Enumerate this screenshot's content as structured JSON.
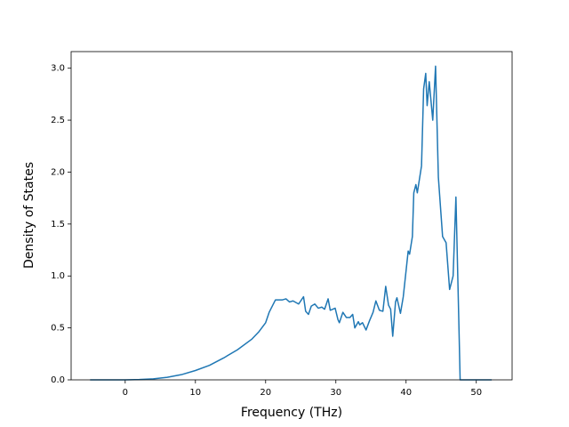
{
  "chart_data": {
    "type": "line",
    "xlabel": "Frequency (THz)",
    "ylabel": "Density of States",
    "xlim": [
      -7.7,
      55.1
    ],
    "ylim": [
      0,
      3.16
    ],
    "xticks": [
      0,
      10,
      20,
      30,
      40,
      50
    ],
    "yticks": [
      {
        "value": 0,
        "label": "0.0"
      },
      0.5,
      {
        "value": 1,
        "label": "1.0"
      },
      1.5,
      {
        "value": 2,
        "label": "2.0"
      },
      2.5,
      {
        "value": 3,
        "label": "3.0"
      }
    ],
    "grid": false,
    "series": [
      {
        "color": "#1f77b4",
        "x": [
          -5,
          0,
          2,
          4,
          6,
          8,
          10,
          12,
          14,
          16,
          18,
          19,
          20,
          20.5,
          21.4,
          22.4,
          22.9,
          23.4,
          23.9,
          24.7,
          25.4,
          25.7,
          26.1,
          26.5,
          27,
          27.5,
          28,
          28.4,
          28.9,
          29.2,
          29.9,
          30.3,
          30.5,
          31,
          31.5,
          32,
          32.4,
          32.7,
          33.2,
          33.4,
          33.8,
          34.3,
          34.8,
          35.3,
          35.7,
          36.2,
          36.7,
          37.1,
          37.5,
          37.8,
          38.1,
          38.5,
          38.7,
          39.2,
          39.6,
          40,
          40.3,
          40.5,
          40.9,
          41.1,
          41.4,
          41.6,
          42.2,
          42.5,
          42.8,
          43,
          43.3,
          43.8,
          44.2,
          44.6,
          45.2,
          45.7,
          46.2,
          46.7,
          47.1,
          47.5,
          47.7,
          52.2
        ],
        "values": [
          0,
          0,
          0.003,
          0.01,
          0.025,
          0.05,
          0.09,
          0.14,
          0.21,
          0.29,
          0.39,
          0.46,
          0.55,
          0.65,
          0.77,
          0.77,
          0.78,
          0.75,
          0.76,
          0.73,
          0.8,
          0.66,
          0.63,
          0.71,
          0.73,
          0.69,
          0.7,
          0.68,
          0.78,
          0.67,
          0.69,
          0.58,
          0.55,
          0.65,
          0.6,
          0.6,
          0.63,
          0.5,
          0.56,
          0.53,
          0.55,
          0.48,
          0.57,
          0.65,
          0.76,
          0.67,
          0.66,
          0.9,
          0.72,
          0.68,
          0.42,
          0.75,
          0.79,
          0.64,
          0.8,
          1.05,
          1.24,
          1.21,
          1.38,
          1.8,
          1.88,
          1.8,
          2.06,
          2.8,
          2.95,
          2.64,
          2.87,
          2.5,
          3.02,
          1.95,
          1.38,
          1.32,
          0.87,
          1.0,
          1.76,
          0.6,
          0,
          0
        ]
      }
    ]
  }
}
